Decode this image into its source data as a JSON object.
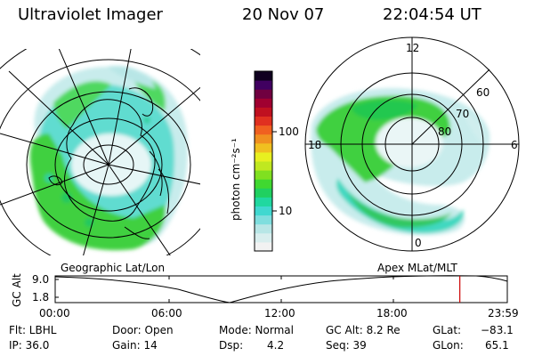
{
  "header": {
    "title": "Ultraviolet Imager",
    "date": "20 Nov 07",
    "time": "22:04:54 UT"
  },
  "colorbar": {
    "label": "photon cm⁻²s⁻¹",
    "ticks": [
      "100",
      "10"
    ],
    "colors": [
      "#f2f2f2",
      "#d9eeee",
      "#b8e6e6",
      "#7fdede",
      "#40d8d0",
      "#20d8a0",
      "#20d060",
      "#40d830",
      "#80e020",
      "#c0e820",
      "#e8f020",
      "#f0c020",
      "#f09020",
      "#f06020",
      "#e03020",
      "#c01020",
      "#a00030",
      "#700040",
      "#400060",
      "#100020"
    ]
  },
  "maps": {
    "left_label": "Geographic Lat/Lon",
    "right_label": "Apex MLat/MLT",
    "polar_lat_labels": [
      "60",
      "70",
      "80"
    ],
    "polar_mlt_labels": {
      "top": "12",
      "left": "18",
      "right": "6",
      "bottom": "0"
    }
  },
  "altitude_plot": {
    "ylabel": "GC Alt",
    "y_ticks": [
      "9.0",
      "1.8"
    ],
    "x_ticks": [
      "00:00",
      "06:00",
      "12:00",
      "18:00",
      "23:59"
    ],
    "current_time_fraction": 0.895,
    "marker_color": "#cc0000"
  },
  "info": {
    "filter": "Flt: LBHL",
    "ip": "IP: 36.0",
    "door": "Door: Open",
    "gain": "Gain: 14",
    "mode": "Mode: Normal",
    "dsp_label": "Dsp:",
    "dsp_value": "4.2",
    "gc_alt": "GC Alt: 8.2 Re",
    "seq": "Seq: 39",
    "glat_label": "GLat:",
    "glat_value": "−83.1",
    "glon_label": "GLon:",
    "glon_value": "65.1"
  }
}
